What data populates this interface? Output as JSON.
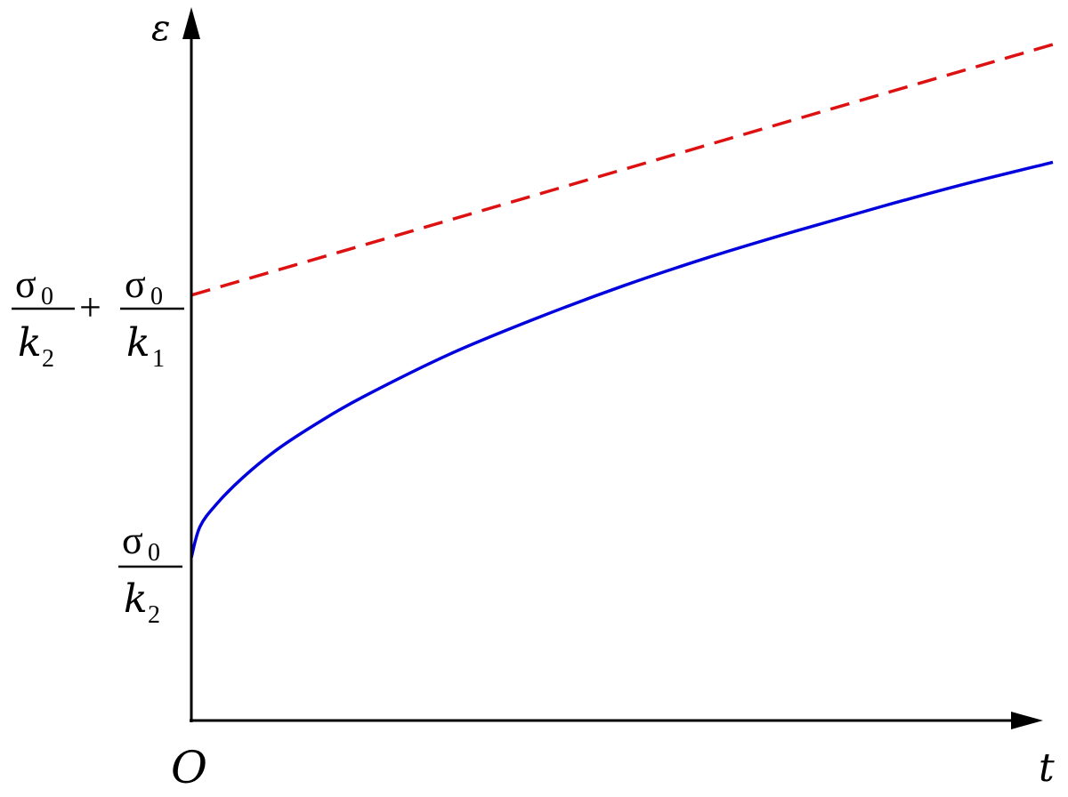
{
  "chart_data": {
    "type": "line",
    "title": "",
    "xlabel": "t",
    "ylabel": "ε",
    "origin_label": "O",
    "xlim": [
      0,
      1
    ],
    "ylim": [
      0,
      1
    ],
    "y_ticks": [
      {
        "name": "sigma0_over_k2",
        "value": 0.238,
        "parts": [
          "σ",
          "0",
          "k",
          "2"
        ]
      },
      {
        "name": "sigma0_over_k2_plus_sigma0_over_k1",
        "value": 0.621,
        "parts": [
          "σ",
          "0",
          "k",
          "2",
          "+",
          "σ",
          "0",
          "k",
          "1"
        ]
      }
    ],
    "series": [
      {
        "color": "#0000dd",
        "style": "solid",
        "x": [
          0,
          0.01,
          0.03,
          0.06,
          0.1,
          0.15,
          0.2,
          0.3,
          0.4,
          0.5,
          0.6,
          0.7,
          0.8,
          0.9,
          1.0
        ],
        "y": [
          0.238,
          0.283,
          0.317,
          0.355,
          0.396,
          0.437,
          0.473,
          0.535,
          0.587,
          0.634,
          0.676,
          0.714,
          0.75,
          0.784,
          0.815
        ]
      },
      {
        "color": "#dd1111",
        "style": "dashed",
        "x": [
          0,
          1.0
        ],
        "y": [
          0.621,
          0.987
        ]
      }
    ]
  }
}
